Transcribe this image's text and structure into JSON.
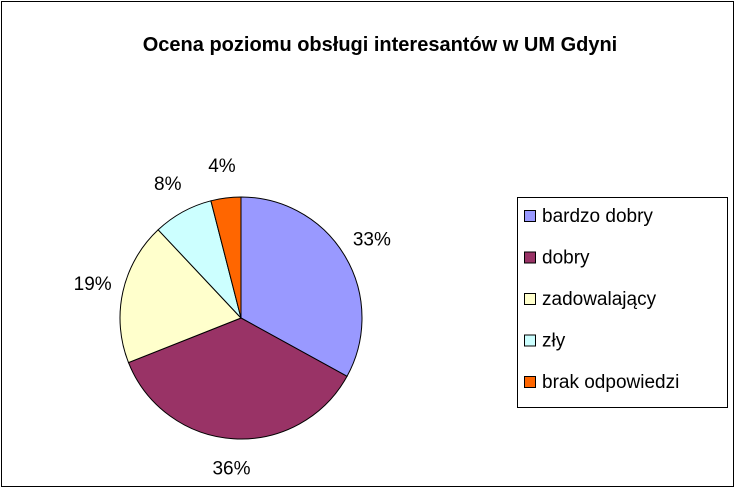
{
  "chart_data": {
    "type": "pie",
    "title": "Ocena poziomu obsługi interesantów w UM Gdyni",
    "categories": [
      "bardzo dobry",
      "dobry",
      "zadowalający",
      "zły",
      "brak odpowiedzi"
    ],
    "values": [
      33,
      36,
      19,
      8,
      4
    ],
    "value_labels": [
      "33%",
      "36%",
      "19%",
      "8%",
      "4%"
    ],
    "colors": [
      "#9999ff",
      "#993366",
      "#ffffcc",
      "#ccffff",
      "#ff6600"
    ],
    "legend": "right"
  }
}
